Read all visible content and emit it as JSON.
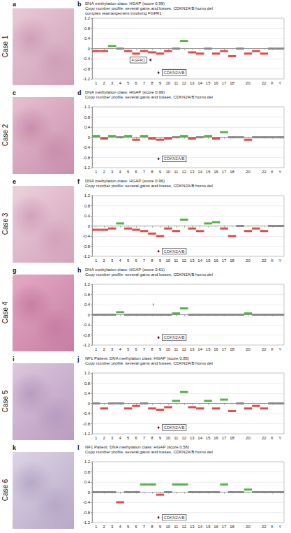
{
  "chart_data": [
    {
      "type": "segment",
      "case_label": "Case 1",
      "image_letter": "a",
      "letter": "b",
      "title": "DNA methylation class: HGAP (score 0.99)",
      "subtitle": [
        "Copy number profile: several gains and losses, CDKN2A/B homo del",
        "complex rearrangement involving FGFR1"
      ],
      "categories": [
        "1",
        "2",
        "3",
        "4",
        "5",
        "6",
        "7",
        "8",
        "9",
        "10",
        "11",
        "12",
        "13",
        "14",
        "15",
        "16",
        "17",
        "18",
        null,
        "20",
        null,
        "22",
        "X",
        "Y"
      ],
      "values": [
        -0.1,
        -0.1,
        0.1,
        0,
        -0.1,
        -0.2,
        -0.1,
        -0.15,
        -0.2,
        -0.1,
        0,
        0.3,
        -0.15,
        -0.2,
        0,
        -0.2,
        -0.1,
        -0.3,
        0,
        -0.2,
        -0.1,
        -0.2,
        0,
        0
      ],
      "focal": [
        {
          "x": 7.3,
          "value": -0.45,
          "label": "FGFR1"
        },
        {
          "x": 8.3,
          "value": -0.95,
          "label": "CDKN2A/B"
        }
      ],
      "xlim": [
        0,
        24
      ],
      "ylim": [
        -1.2,
        1.2
      ],
      "yticks": [
        -1.2,
        -0.8,
        -0.4,
        0,
        0.4,
        0.8,
        1.2
      ],
      "grid": true
    },
    {
      "type": "segment",
      "case_label": "Case 2",
      "image_letter": "c",
      "letter": "d",
      "title": "DNA methylation class: HGAP (score 0.99)",
      "subtitle": [
        "Copy number profile: several gains and losses, CDKN2A/B homo del"
      ],
      "categories": [
        "1",
        "2",
        "3",
        "4",
        "5",
        "6",
        "7",
        "8",
        "9",
        "10",
        "11",
        "12",
        "13",
        "14",
        "15",
        "16",
        "17",
        "18",
        null,
        "20",
        null,
        "22",
        "X",
        "Y"
      ],
      "values": [
        0.05,
        -0.05,
        0.05,
        0,
        0.05,
        -0.1,
        0.05,
        -0.05,
        -0.1,
        -0.05,
        0,
        0.05,
        -0.05,
        0,
        0.05,
        -0.05,
        0.2,
        0,
        0,
        -0.1,
        0,
        0,
        0,
        0
      ],
      "focal": [
        {
          "x": 8.3,
          "value": -0.85,
          "label": "CDKN2A/B"
        }
      ],
      "xlim": [
        0,
        24
      ],
      "ylim": [
        -1.2,
        1.2
      ],
      "yticks": [
        -1.2,
        -0.8,
        -0.4,
        0,
        0.4,
        0.8,
        1.2
      ],
      "grid": true
    },
    {
      "type": "segment",
      "case_label": "Case 3",
      "image_letter": "e",
      "letter": "f",
      "title": "DNA methylation class: HGAP (score 0.96)",
      "subtitle": [
        "Copy number profile: several gains and losses, CDKN2A/B homo del"
      ],
      "categories": [
        "1",
        "2",
        "3",
        "4",
        "5",
        "6",
        "7",
        "8",
        "9",
        "10",
        "11",
        "12",
        "13",
        "14",
        "15",
        "16",
        "17",
        "18",
        null,
        "20",
        null,
        "22",
        "X",
        "Y"
      ],
      "values": [
        -0.15,
        -0.15,
        -0.1,
        0.1,
        -0.1,
        -0.15,
        -0.2,
        -0.3,
        -0.4,
        -0.1,
        -0.2,
        0.25,
        -0.1,
        -0.2,
        0.1,
        0.15,
        -0.1,
        -0.4,
        0,
        -0.2,
        -0.1,
        -0.2,
        0,
        0
      ],
      "focal": [
        {
          "x": 8.3,
          "value": -1.0,
          "label": "CDKN2A/B"
        }
      ],
      "xlim": [
        0,
        24
      ],
      "ylim": [
        -1.2,
        1.2
      ],
      "yticks": [
        -1.2,
        -0.8,
        -0.4,
        0,
        0.4,
        0.8,
        1.2
      ],
      "grid": true
    },
    {
      "type": "segment",
      "case_label": "Case 4",
      "image_letter": "g",
      "letter": "h",
      "title": "DNA methylation class: HGAP (score 0.61)",
      "subtitle": [
        "Copy number profile: several gains and losses, CDKN2A/B homo del"
      ],
      "categories": [
        "1",
        "2",
        "3",
        "4",
        "5",
        "6",
        "7",
        "8",
        "9",
        "10",
        "11",
        "12",
        "13",
        "14",
        "15",
        "16",
        "17",
        "18",
        null,
        "20",
        null,
        "22",
        "X",
        "Y"
      ],
      "values": [
        0,
        0,
        0,
        0.1,
        0,
        0,
        0,
        0,
        0,
        0,
        0.05,
        0.25,
        0,
        0,
        0,
        0,
        0,
        0,
        0,
        0.05,
        0,
        0,
        0,
        0
      ],
      "focal": [
        {
          "x": 7.65,
          "value": 0.4
        },
        {
          "x": 8.3,
          "value": -0.9,
          "label": "CDKN2A/B"
        }
      ],
      "xlim": [
        0,
        24
      ],
      "ylim": [
        -1.2,
        1.2
      ],
      "yticks": [
        -1.2,
        -0.8,
        -0.4,
        0,
        0.4,
        0.8,
        1.2
      ],
      "grid": true
    },
    {
      "type": "segment",
      "case_label": "Case 5",
      "image_letter": "i",
      "letter": "j",
      "title": "NF1 Patient. DNA methylation class: HGAP (score 0.85)",
      "subtitle": [
        "Copy number profile: several gains and losses, CDKN2A/B homo del"
      ],
      "categories": [
        "1",
        "2",
        "3",
        "4",
        "5",
        "6",
        "7",
        "8",
        "9",
        "10",
        "11",
        "12",
        "13",
        "14",
        "15",
        "16",
        "17",
        "18",
        null,
        "20",
        null,
        "22",
        "X",
        "Y"
      ],
      "values": [
        0,
        -0.2,
        0,
        0,
        -0.2,
        -0.1,
        0,
        -0.2,
        -0.25,
        -0.15,
        0.1,
        0.45,
        -0.15,
        -0.2,
        0.1,
        -0.2,
        0.15,
        -0.3,
        0,
        -0.2,
        -0.1,
        -0.2,
        0,
        0
      ],
      "focal": [
        {
          "x": 8.3,
          "value": -0.95,
          "label": "CDKN2A/B"
        }
      ],
      "xlim": [
        0,
        24
      ],
      "ylim": [
        -1.2,
        1.2
      ],
      "yticks": [
        -1.2,
        -0.8,
        -0.4,
        0,
        0.4,
        0.8,
        1.2
      ],
      "grid": true
    },
    {
      "type": "segment",
      "case_label": "Case 6",
      "image_letter": "k",
      "letter": "l",
      "title": "NF1 Patient. DNA methylation class: HGAP (score 0.58)",
      "subtitle": [
        "Copy number profile: several gains and losses, CDKN2A/B homo del"
      ],
      "categories": [
        "1",
        "2",
        "3",
        "4",
        "5",
        "6",
        "7",
        "8",
        "9",
        "10",
        "11",
        "12",
        "13",
        "14",
        "15",
        "16",
        "17",
        "18",
        null,
        "20",
        null,
        "22",
        "X",
        "Y"
      ],
      "values": [
        0,
        0,
        0,
        -0.4,
        0,
        0,
        0.3,
        0.3,
        -0.1,
        0,
        0.3,
        0.3,
        0,
        0,
        0,
        0,
        0.3,
        0,
        0,
        0.1,
        0,
        0,
        0,
        0
      ],
      "focal": [
        {
          "x": 8.3,
          "value": -1.0,
          "label": "CDKN2A/B"
        }
      ],
      "xlim": [
        0,
        24
      ],
      "ylim": [
        -1.2,
        1.2
      ],
      "yticks": [
        -1.2,
        -0.8,
        -0.4,
        0,
        0.4,
        0.8,
        1.2
      ],
      "grid": true
    }
  ]
}
